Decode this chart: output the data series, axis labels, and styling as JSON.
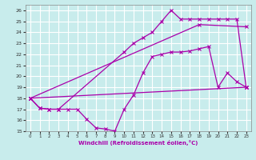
{
  "xlabel": "Windchill (Refroidissement éolien,°C)",
  "xlim": [
    -0.5,
    23.5
  ],
  "ylim": [
    15,
    26.5
  ],
  "yticks": [
    15,
    16,
    17,
    18,
    19,
    20,
    21,
    22,
    23,
    24,
    25,
    26
  ],
  "xticks": [
    0,
    1,
    2,
    3,
    4,
    5,
    6,
    7,
    8,
    9,
    10,
    11,
    12,
    13,
    14,
    15,
    16,
    17,
    18,
    19,
    20,
    21,
    22,
    23
  ],
  "bg_color": "#c8ecec",
  "grid_color": "#ffffff",
  "line_color": "#aa00aa",
  "line1_x": [
    0,
    23
  ],
  "line1_y": [
    18,
    19
  ],
  "line2_x": [
    0,
    1,
    2,
    3,
    4,
    5,
    6,
    7,
    8,
    9,
    10,
    11,
    12,
    13,
    14,
    15,
    16,
    17,
    18,
    19,
    20,
    21,
    22,
    23
  ],
  "line2_y": [
    18,
    17.1,
    17.0,
    17.0,
    17.0,
    17.0,
    16.1,
    15.3,
    15.2,
    15.0,
    17.0,
    18.3,
    20.3,
    21.8,
    22.0,
    22.2,
    22.2,
    22.3,
    22.5,
    22.7,
    19.0,
    20.3,
    19.5,
    19.0
  ],
  "line3_x": [
    0,
    1,
    2,
    3,
    10,
    11,
    12,
    13,
    14,
    15,
    16,
    17,
    18,
    19,
    20,
    21,
    22,
    23
  ],
  "line3_y": [
    18,
    17.1,
    17.0,
    17.0,
    22.2,
    23.0,
    23.5,
    24.0,
    25.0,
    26.0,
    25.2,
    25.2,
    25.2,
    25.2,
    25.2,
    25.2,
    25.2,
    19.0
  ],
  "line4_x": [
    0,
    18,
    23
  ],
  "line4_y": [
    18,
    24.7,
    24.5
  ]
}
